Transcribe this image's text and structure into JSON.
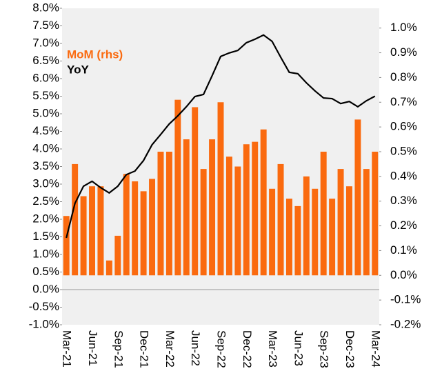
{
  "chart_data": {
    "type": "bar-line",
    "categories": [
      "Mar-21",
      null,
      null,
      "Jun-21",
      null,
      null,
      "Sep-21",
      null,
      null,
      "Dec-21",
      null,
      null,
      "Mar-22",
      null,
      null,
      "Jun-22",
      null,
      null,
      "Sep-22",
      null,
      null,
      "Dec-22",
      null,
      null,
      "Mar-23",
      null,
      null,
      "Jun-23",
      null,
      null,
      "Sep-23",
      null,
      null,
      "Dec-23",
      null,
      null,
      "Mar-24"
    ],
    "series": [
      {
        "name": "MoM (rhs)",
        "color": "#fa6a0f",
        "axis": "y2",
        "type": "bar",
        "values": [
          0.24,
          0.45,
          0.32,
          0.36,
          0.36,
          0.06,
          0.16,
          0.41,
          0.38,
          0.34,
          0.39,
          0.5,
          0.5,
          0.71,
          0.55,
          0.68,
          0.43,
          0.55,
          0.7,
          0.48,
          0.44,
          0.53,
          0.54,
          0.59,
          0.35,
          0.45,
          0.31,
          0.28,
          0.4,
          0.35,
          0.5,
          0.31,
          0.43,
          0.36,
          0.63,
          0.43,
          0.5
        ]
      },
      {
        "name": "YoY",
        "color": "#000000",
        "type": "line",
        "values": [
          1.47,
          2.45,
          2.94,
          3.08,
          2.9,
          2.75,
          2.94,
          3.27,
          3.37,
          3.67,
          4.12,
          4.41,
          4.71,
          4.94,
          5.2,
          5.49,
          5.55,
          6.08,
          6.63,
          6.73,
          6.8,
          7.02,
          7.12,
          7.24,
          7.06,
          6.61,
          6.18,
          6.14,
          5.88,
          5.65,
          5.45,
          5.43,
          5.29,
          5.35,
          5.2,
          5.37,
          5.5
        ]
      }
    ],
    "ylim": [
      -1.0,
      8.0
    ],
    "yticks": [
      {
        "value": -1.0,
        "label": "-1.0%"
      },
      {
        "value": -0.5,
        "label": "-0.5%"
      },
      {
        "value": 0.0,
        "label": "0.0%"
      },
      {
        "value": 0.5,
        "label": "0.5%"
      },
      {
        "value": 1.0,
        "label": "1.0%"
      },
      {
        "value": 1.5,
        "label": "1.5%"
      },
      {
        "value": 2.0,
        "label": "2.0%"
      },
      {
        "value": 2.5,
        "label": "2.5%"
      },
      {
        "value": 3.0,
        "label": "3.0%"
      },
      {
        "value": 3.5,
        "label": "3.5%"
      },
      {
        "value": 4.0,
        "label": "4.0%"
      },
      {
        "value": 4.5,
        "label": "4.5%"
      },
      {
        "value": 5.0,
        "label": "5.0%"
      },
      {
        "value": 5.5,
        "label": "5.5%"
      },
      {
        "value": 6.0,
        "label": "6.0%"
      },
      {
        "value": 6.5,
        "label": "6.5%"
      },
      {
        "value": 7.0,
        "label": "7.0%"
      },
      {
        "value": 7.5,
        "label": "7.5%"
      },
      {
        "value": 8.0,
        "label": "8.0%"
      }
    ],
    "y2lim": [
      -0.2,
      1.08
    ],
    "y2ticks": [
      {
        "value": -0.2,
        "label": "-0.2%"
      },
      {
        "value": -0.1,
        "label": "-0.1%"
      },
      {
        "value": 0.0,
        "label": "0.0%"
      },
      {
        "value": 0.1,
        "label": "0.1%"
      },
      {
        "value": 0.2,
        "label": "0.2%"
      },
      {
        "value": 0.3,
        "label": "0.3%"
      },
      {
        "value": 0.4,
        "label": "0.4%"
      },
      {
        "value": 0.5,
        "label": "0.5%"
      },
      {
        "value": 0.6,
        "label": "0.6%"
      },
      {
        "value": 0.7,
        "label": "0.7%"
      },
      {
        "value": 0.8,
        "label": "0.8%"
      },
      {
        "value": 0.9,
        "label": "0.9%"
      },
      {
        "value": 1.0,
        "label": "1.0%"
      }
    ],
    "background": "#f0f0f0"
  }
}
